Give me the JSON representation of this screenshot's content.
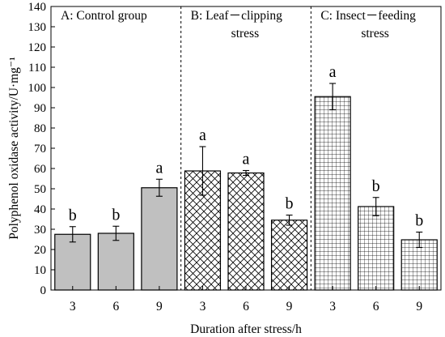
{
  "chart_data": {
    "type": "bar",
    "xlabel": "Duration after stress/h",
    "ylabel": "Polyphenol oxidase activity/U·mg⁻¹",
    "ylim": [
      0,
      140
    ],
    "yticks": [
      0,
      10,
      20,
      30,
      40,
      50,
      60,
      70,
      80,
      90,
      100,
      110,
      120,
      130,
      140
    ],
    "grid": false,
    "panels": [
      {
        "label": [
          "A: Control group"
        ],
        "pattern": "solid-gray",
        "categories": [
          "3",
          "6",
          "9"
        ],
        "values": [
          27.5,
          28,
          50.5
        ],
        "errors": [
          3.8,
          3.5,
          4.2
        ],
        "letters": [
          "b",
          "b",
          "a"
        ]
      },
      {
        "label": [
          "B: Leaf－clipping",
          "stress"
        ],
        "pattern": "diagonal-crosshatch",
        "categories": [
          "3",
          "6",
          "9"
        ],
        "values": [
          58.8,
          57.8,
          34.5
        ],
        "errors": [
          12,
          1.2,
          2.5
        ],
        "letters": [
          "a",
          "a",
          "b"
        ]
      },
      {
        "label": [
          "C: Insect－feeding",
          "stress"
        ],
        "pattern": "square-grid",
        "categories": [
          "3",
          "6",
          "9"
        ],
        "values": [
          95.5,
          41.2,
          24.8
        ],
        "errors": [
          6.5,
          4.5,
          3.8
        ],
        "letters": [
          "a",
          "b",
          "b"
        ]
      }
    ]
  }
}
